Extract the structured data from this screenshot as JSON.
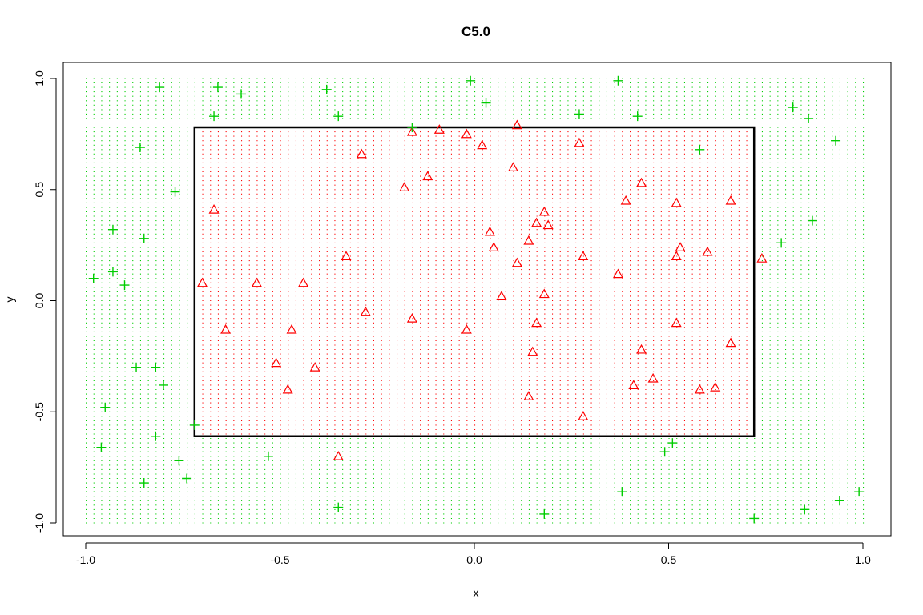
{
  "chart_data": {
    "type": "scatter",
    "title": "C5.0",
    "xlabel": "x",
    "ylabel": "y",
    "xlim": [
      -1.0,
      1.0
    ],
    "ylim": [
      -1.0,
      1.0
    ],
    "x_ticks": [
      -1.0,
      -0.5,
      0.0,
      0.5,
      1.0
    ],
    "y_ticks": [
      -1.0,
      -0.5,
      0.0,
      0.5,
      1.0
    ],
    "x_tick_labels": [
      "-1.0",
      "-0.5",
      "0.0",
      "0.5",
      "1.0"
    ],
    "y_tick_labels": [
      "-1.0",
      "-0.5",
      "0.0",
      "0.5",
      "1.0"
    ],
    "decision_region": {
      "x_range": [
        -0.72,
        0.72
      ],
      "y_range": [
        -0.61,
        0.78
      ],
      "inside_color": "#ff0000",
      "outside_color": "#00cd00",
      "grid_step": 0.02
    },
    "series": [
      {
        "marker": "triangle",
        "color": "#ff0000",
        "points": [
          [
            -0.7,
            0.08
          ],
          [
            -0.67,
            0.41
          ],
          [
            -0.64,
            -0.13
          ],
          [
            -0.56,
            0.08
          ],
          [
            -0.51,
            -0.28
          ],
          [
            -0.48,
            -0.4
          ],
          [
            -0.47,
            -0.13
          ],
          [
            -0.44,
            0.08
          ],
          [
            -0.41,
            -0.3
          ],
          [
            -0.33,
            0.2
          ],
          [
            -0.35,
            -0.7
          ],
          [
            -0.29,
            0.66
          ],
          [
            -0.28,
            -0.05
          ],
          [
            -0.18,
            0.51
          ],
          [
            -0.16,
            -0.08
          ],
          [
            -0.16,
            0.76
          ],
          [
            -0.12,
            0.56
          ],
          [
            -0.09,
            0.77
          ],
          [
            -0.02,
            0.75
          ],
          [
            -0.02,
            -0.13
          ],
          [
            0.02,
            0.7
          ],
          [
            0.04,
            0.31
          ],
          [
            0.05,
            0.24
          ],
          [
            0.07,
            0.02
          ],
          [
            0.1,
            0.6
          ],
          [
            0.11,
            0.79
          ],
          [
            0.11,
            0.17
          ],
          [
            0.14,
            0.27
          ],
          [
            0.14,
            -0.43
          ],
          [
            0.15,
            -0.23
          ],
          [
            0.16,
            0.35
          ],
          [
            0.16,
            -0.1
          ],
          [
            0.18,
            0.4
          ],
          [
            0.18,
            0.03
          ],
          [
            0.19,
            0.34
          ],
          [
            0.27,
            0.71
          ],
          [
            0.28,
            0.2
          ],
          [
            0.28,
            -0.52
          ],
          [
            0.37,
            0.12
          ],
          [
            0.39,
            0.45
          ],
          [
            0.41,
            -0.38
          ],
          [
            0.43,
            0.53
          ],
          [
            0.43,
            -0.22
          ],
          [
            0.46,
            -0.35
          ],
          [
            0.52,
            0.44
          ],
          [
            0.52,
            0.2
          ],
          [
            0.52,
            -0.1
          ],
          [
            0.53,
            0.24
          ],
          [
            0.58,
            -0.4
          ],
          [
            0.6,
            0.22
          ],
          [
            0.62,
            -0.39
          ],
          [
            0.66,
            0.45
          ],
          [
            0.66,
            -0.19
          ],
          [
            0.74,
            0.19
          ]
        ]
      },
      {
        "marker": "plus",
        "color": "#00cd00",
        "points": [
          [
            -0.98,
            0.1
          ],
          [
            -0.96,
            -0.66
          ],
          [
            -0.95,
            -0.48
          ],
          [
            -0.93,
            0.32
          ],
          [
            -0.93,
            0.13
          ],
          [
            -0.9,
            0.07
          ],
          [
            -0.87,
            -0.3
          ],
          [
            -0.86,
            0.69
          ],
          [
            -0.85,
            0.28
          ],
          [
            -0.85,
            -0.82
          ],
          [
            -0.82,
            -0.3
          ],
          [
            -0.82,
            -0.61
          ],
          [
            -0.81,
            0.96
          ],
          [
            -0.8,
            -0.38
          ],
          [
            -0.77,
            0.49
          ],
          [
            -0.76,
            -0.72
          ],
          [
            -0.74,
            -0.8
          ],
          [
            -0.72,
            -0.56
          ],
          [
            -0.67,
            0.83
          ],
          [
            -0.66,
            0.96
          ],
          [
            -0.6,
            0.93
          ],
          [
            -0.53,
            -0.7
          ],
          [
            -0.38,
            0.95
          ],
          [
            -0.35,
            0.83
          ],
          [
            -0.35,
            -0.93
          ],
          [
            -0.16,
            0.78
          ],
          [
            -0.01,
            0.99
          ],
          [
            0.03,
            0.89
          ],
          [
            0.18,
            -0.96
          ],
          [
            0.27,
            0.84
          ],
          [
            0.37,
            0.99
          ],
          [
            0.38,
            -0.86
          ],
          [
            0.42,
            0.83
          ],
          [
            0.49,
            -0.68
          ],
          [
            0.51,
            -0.64
          ],
          [
            0.58,
            0.68
          ],
          [
            0.72,
            -0.98
          ],
          [
            0.79,
            0.26
          ],
          [
            0.82,
            0.87
          ],
          [
            0.85,
            -0.94
          ],
          [
            0.86,
            0.82
          ],
          [
            0.87,
            0.36
          ],
          [
            0.93,
            0.72
          ],
          [
            0.94,
            -0.9
          ],
          [
            0.99,
            -0.86
          ]
        ]
      }
    ]
  }
}
